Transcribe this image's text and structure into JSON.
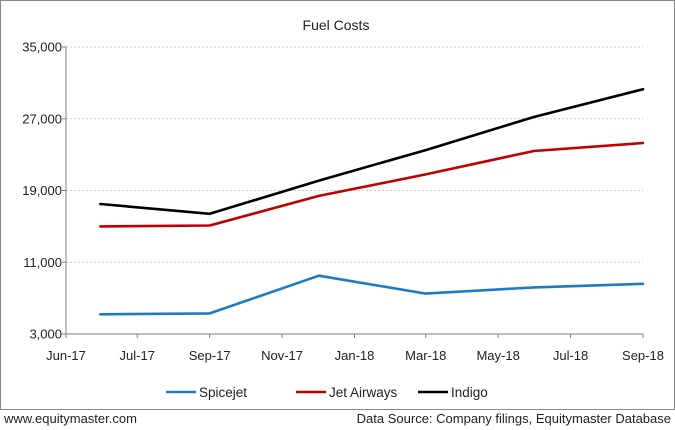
{
  "chart_data": {
    "type": "line",
    "title": "Fuel Costs",
    "xlabel": "",
    "ylabel": "",
    "x_ticks": [
      "Jun-17",
      "Jul-17",
      "Sep-17",
      "Nov-17",
      "Jan-18",
      "Mar-18",
      "May-18",
      "Jul-18",
      "Sep-18"
    ],
    "x_tick_dates": [
      "2017-06-01",
      "2017-07-31",
      "2017-09-30",
      "2017-11-30",
      "2018-01-30",
      "2018-03-31",
      "2018-05-31",
      "2018-07-31",
      "2018-09-30"
    ],
    "x_range": [
      "2017-06-01",
      "2018-09-30"
    ],
    "y_ticks": [
      3000,
      11000,
      19000,
      27000,
      35000
    ],
    "y_tick_labels": [
      "3,000",
      "11,000",
      "19,000",
      "27,000",
      "35,000"
    ],
    "ylim": [
      3000,
      35000
    ],
    "grid": "horizontal",
    "legend_position": "bottom",
    "x": [
      "2017-06-30",
      "2017-09-30",
      "2017-12-31",
      "2018-03-31",
      "2018-06-30",
      "2018-09-30"
    ],
    "series": [
      {
        "name": "Spicejet",
        "color": "#1f7bc1",
        "values": [
          5200,
          5300,
          9500,
          7500,
          8200,
          8600
        ]
      },
      {
        "name": "Jet Airways",
        "color": "#c00000",
        "values": [
          15000,
          15100,
          18400,
          20800,
          23400,
          24300
        ]
      },
      {
        "name": "Indigo",
        "color": "#000000",
        "values": [
          17500,
          16400,
          20100,
          23500,
          27200,
          30300
        ]
      }
    ]
  },
  "footer": {
    "left": "www.equitymaster.com",
    "right": "Data Source: Company filings, Equitymaster Database"
  }
}
